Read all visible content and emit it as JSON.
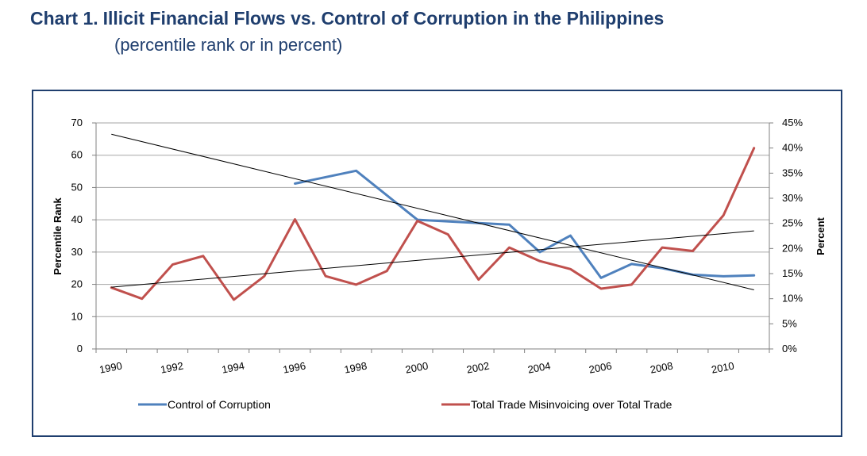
{
  "header": {
    "chart_number": "Chart 1.",
    "title": "Illicit Financial Flows vs. Control of Corruption in the Philippines",
    "subtitle": "(percentile rank or in percent)"
  },
  "colors": {
    "title": "#1f3e6e",
    "frame": "#1f3e6e",
    "corruption_series": "#4f81bd",
    "misinvoicing_series": "#c0504d",
    "trendline": "#000000",
    "gridline": "#a6a6a6"
  },
  "chart_data": {
    "type": "line",
    "title": "Illicit Financial Flows vs. Control of Corruption in the Philippines",
    "subtitle": "(percentile rank or in percent)",
    "ylabel_left": "Percentile Rank",
    "ylabel_right": "Percent",
    "xlabel": "",
    "x_range": [
      1990,
      2011
    ],
    "y_left_range": [
      0,
      70
    ],
    "y_right_range": [
      0,
      45
    ],
    "x_ticks": [
      "1990",
      "1992",
      "1994",
      "1996",
      "1998",
      "2000",
      "2002",
      "2004",
      "2006",
      "2008",
      "2010"
    ],
    "y_left_ticks": [
      "0",
      "10",
      "20",
      "30",
      "40",
      "50",
      "60",
      "70"
    ],
    "y_right_ticks": [
      "0%",
      "5%",
      "10%",
      "15%",
      "20%",
      "25%",
      "30%",
      "35%",
      "40%",
      "45%"
    ],
    "grid": true,
    "legend_position": "bottom",
    "series": [
      {
        "name": "Control of Corruption",
        "axis": "left",
        "points": [
          [
            1996,
            51.2
          ],
          [
            1998,
            55.2
          ],
          [
            2000,
            40.0
          ],
          [
            2002,
            39.0
          ],
          [
            2003,
            38.5
          ],
          [
            2004,
            30.0
          ],
          [
            2005,
            35.1
          ],
          [
            2006,
            22.0
          ],
          [
            2007,
            26.3
          ],
          [
            2008,
            25.0
          ],
          [
            2009,
            23.0
          ],
          [
            2010,
            22.5
          ],
          [
            2011,
            22.8
          ]
        ]
      },
      {
        "name": "Total Trade Misinvoicing over Total Trade",
        "axis": "right",
        "unit": "%",
        "points": [
          [
            1990,
            12.2
          ],
          [
            1991,
            10.0
          ],
          [
            1992,
            16.8
          ],
          [
            1993,
            18.5
          ],
          [
            1994,
            9.8
          ],
          [
            1995,
            14.5
          ],
          [
            1996,
            25.8
          ],
          [
            1997,
            14.5
          ],
          [
            1998,
            12.8
          ],
          [
            1999,
            15.5
          ],
          [
            2000,
            25.5
          ],
          [
            2001,
            22.8
          ],
          [
            2002,
            13.8
          ],
          [
            2003,
            20.2
          ],
          [
            2004,
            17.5
          ],
          [
            2005,
            15.9
          ],
          [
            2006,
            12.0
          ],
          [
            2007,
            12.8
          ],
          [
            2008,
            20.2
          ],
          [
            2009,
            19.5
          ],
          [
            2010,
            26.6
          ],
          [
            2011,
            40.0
          ]
        ]
      }
    ],
    "trendlines": [
      {
        "of": "Control of Corruption",
        "axis": "left",
        "start": [
          1990,
          66.5
        ],
        "end": [
          2011,
          18.3
        ]
      },
      {
        "of": "Total Trade Misinvoicing over Total Trade",
        "axis": "right",
        "start": [
          1990,
          12.3
        ],
        "end": [
          2011,
          23.5
        ]
      }
    ]
  }
}
